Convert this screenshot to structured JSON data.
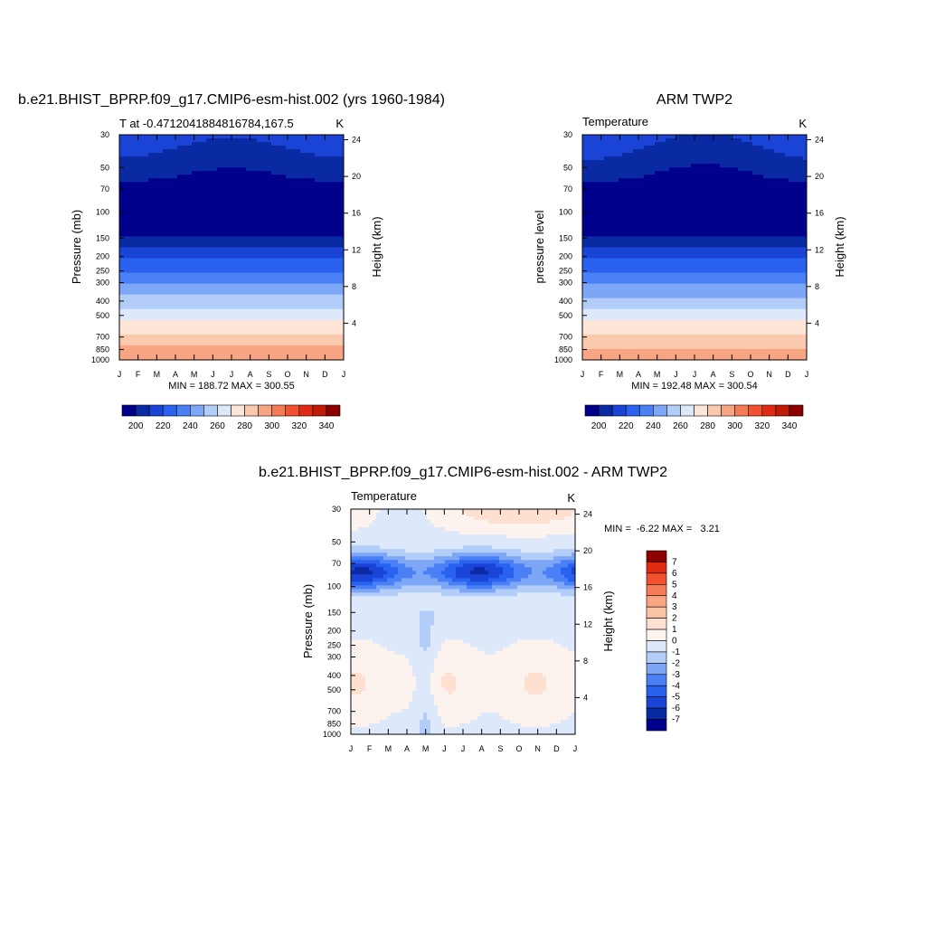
{
  "chart_data": [
    {
      "type": "contour",
      "title": "b.e21.BHIST_BPRP.f09_g17.CMIP6-esm-hist.002 (yrs 1960-1984)",
      "subtitle_left": "T at -0.4712041884816784,167.5",
      "subtitle_right": "K",
      "ylabel": "Pressure (mb)",
      "ylabel_right": "Height (km)",
      "x_ticks": [
        "J",
        "F",
        "M",
        "A",
        "M",
        "J",
        "J",
        "A",
        "S",
        "O",
        "N",
        "D",
        "J"
      ],
      "y_ticks": [
        30,
        50,
        70,
        100,
        150,
        200,
        250,
        300,
        400,
        500,
        700,
        850,
        1000
      ],
      "height_ticks": [
        24,
        20,
        16,
        12,
        8,
        4
      ],
      "ylim": [
        30,
        1000
      ],
      "stats": "MIN = 188.72 MAX = 300.55",
      "stats_values": {
        "min": 188.72,
        "max": 300.55
      },
      "levels": [
        190,
        200,
        210,
        220,
        230,
        240,
        250,
        260,
        270,
        280,
        290,
        300,
        310,
        320,
        330,
        340,
        350
      ],
      "colorbar_ticks": [
        200,
        220,
        240,
        260,
        280,
        300,
        320,
        340
      ],
      "colors": [
        "#00008c",
        "#0a2aa3",
        "#1a44d6",
        "#2a62f0",
        "#4a80f5",
        "#7ea6f7",
        "#b3cdf9",
        "#dde9fb",
        "#fde6d8",
        "#fbc9ad",
        "#f7a582",
        "#f47b56",
        "#f0522f",
        "#e02b12",
        "#c01a08",
        "#8c0000"
      ]
    },
    {
      "type": "contour",
      "title": "ARM TWP2",
      "subtitle_left": "Temperature",
      "subtitle_right": "K",
      "ylabel": "pressure level",
      "ylabel_right": "Height (km)",
      "x_ticks": [
        "J",
        "F",
        "M",
        "A",
        "M",
        "J",
        "J",
        "A",
        "S",
        "O",
        "N",
        "D",
        "J"
      ],
      "y_ticks": [
        30,
        50,
        70,
        100,
        150,
        200,
        250,
        300,
        400,
        500,
        700,
        850,
        1000
      ],
      "height_ticks": [
        24,
        20,
        16,
        12,
        8,
        4
      ],
      "ylim": [
        30,
        1000
      ],
      "stats": "MIN = 192.48 MAX = 300.54",
      "stats_values": {
        "min": 192.48,
        "max": 300.54
      },
      "levels": [
        190,
        200,
        210,
        220,
        230,
        240,
        250,
        260,
        270,
        280,
        290,
        300,
        310,
        320,
        330,
        340,
        350
      ],
      "colorbar_ticks": [
        200,
        220,
        240,
        260,
        280,
        300,
        320,
        340
      ],
      "colors": [
        "#00008c",
        "#0a2aa3",
        "#1a44d6",
        "#2a62f0",
        "#4a80f5",
        "#7ea6f7",
        "#b3cdf9",
        "#dde9fb",
        "#fde6d8",
        "#fbc9ad",
        "#f7a582",
        "#f47b56",
        "#f0522f",
        "#e02b12",
        "#c01a08",
        "#8c0000"
      ]
    },
    {
      "type": "contour",
      "title": "b.e21.BHIST_BPRP.f09_g17.CMIP6-esm-hist.002 - ARM TWP2",
      "subtitle_left": "Temperature",
      "subtitle_right": "K",
      "ylabel": "Pressure (mb)",
      "ylabel_right": "Height (km)",
      "x_ticks": [
        "J",
        "F",
        "M",
        "A",
        "M",
        "J",
        "J",
        "A",
        "S",
        "O",
        "N",
        "D",
        "J"
      ],
      "y_ticks": [
        30,
        50,
        70,
        100,
        150,
        200,
        250,
        300,
        400,
        500,
        700,
        850,
        1000
      ],
      "height_ticks": [
        24,
        20,
        16,
        12,
        8,
        4
      ],
      "ylim": [
        30,
        1000
      ],
      "stats": "MIN =  -6.22 MAX =   3.21",
      "stats_values": {
        "min": -6.22,
        "max": 3.21
      },
      "levels": [
        -7,
        -6,
        -5,
        -4,
        -3,
        -2,
        -1,
        0,
        1,
        2,
        3,
        4,
        5,
        6,
        7
      ],
      "colorbar_ticks": [
        7,
        6,
        5,
        4,
        3,
        2,
        1,
        0,
        -1,
        -2,
        -3,
        -4,
        -5,
        -6,
        -7
      ],
      "colors": [
        "#00008c",
        "#0a2aa3",
        "#1a44d6",
        "#2a62f0",
        "#4a80f5",
        "#7ea6f7",
        "#b3cdf9",
        "#dde9fb",
        "#fdf3ee",
        "#fde0d0",
        "#fbc3a5",
        "#f7a582",
        "#f47b56",
        "#f0522f",
        "#e02b12",
        "#8c0000"
      ]
    }
  ]
}
